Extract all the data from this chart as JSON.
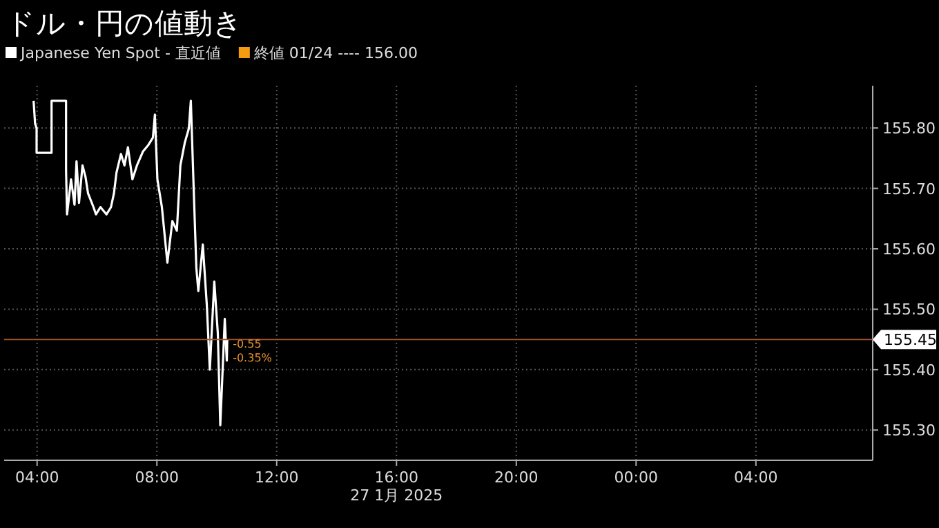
{
  "chart_data": {
    "type": "line",
    "title": "ドル・円の値動き",
    "xlabel": "27 1月 2025",
    "annotations": [
      "終値 01/24 ---- 156.00",
      "-0.55",
      "-0.35%"
    ],
    "series": [
      {
        "name": "Japanese Yen Spot - 直近値",
        "color": "#ffffff",
        "x": [
          "2025-01-27T03:53",
          "2025-01-27T03:56",
          "2025-01-27T03:59",
          "2025-01-27T03:59",
          "2025-01-27T04:29",
          "2025-01-27T04:29",
          "2025-01-27T04:58",
          "2025-01-27T04:58",
          "2025-01-27T05:00",
          "2025-01-27T05:08",
          "2025-01-27T05:15",
          "2025-01-27T05:19",
          "2025-01-27T05:24",
          "2025-01-27T05:31",
          "2025-01-27T05:37",
          "2025-01-27T05:42",
          "2025-01-27T05:53",
          "2025-01-27T05:58",
          "2025-01-27T06:07",
          "2025-01-27T06:19",
          "2025-01-27T06:28",
          "2025-01-27T06:34",
          "2025-01-27T06:39",
          "2025-01-27T06:48",
          "2025-01-27T06:55",
          "2025-01-27T07:02",
          "2025-01-27T07:11",
          "2025-01-27T07:20",
          "2025-01-27T07:32",
          "2025-01-27T07:43",
          "2025-01-27T07:52",
          "2025-01-27T07:56",
          "2025-01-27T08:01",
          "2025-01-27T08:10",
          "2025-01-27T08:21",
          "2025-01-27T08:31",
          "2025-01-27T08:40",
          "2025-01-27T08:47",
          "2025-01-27T08:56",
          "2025-01-27T09:04",
          "2025-01-27T09:08",
          "2025-01-27T09:14",
          "2025-01-27T09:19",
          "2025-01-27T09:23",
          "2025-01-27T09:32",
          "2025-01-27T09:40",
          "2025-01-27T09:46",
          "2025-01-27T09:55",
          "2025-01-27T10:02",
          "2025-01-27T10:07",
          "2025-01-27T10:16",
          "2025-01-27T10:20",
          "2025-01-27T10:21"
        ],
        "values": [
          155.845,
          155.807,
          155.8,
          155.759,
          155.759,
          155.845,
          155.845,
          155.73,
          155.657,
          155.715,
          155.673,
          155.745,
          155.676,
          155.738,
          155.719,
          155.692,
          155.669,
          155.657,
          155.669,
          155.657,
          155.669,
          155.692,
          155.726,
          155.757,
          155.738,
          155.768,
          155.715,
          155.738,
          155.761,
          155.772,
          155.784,
          155.822,
          155.715,
          155.669,
          155.577,
          155.646,
          155.63,
          155.738,
          155.776,
          155.799,
          155.845,
          155.692,
          155.569,
          155.53,
          155.607,
          155.507,
          155.4,
          155.546,
          155.461,
          155.308,
          155.484,
          155.415,
          155.45
        ]
      }
    ],
    "ref_lines": [
      {
        "axis": "y",
        "value": 155.45,
        "label": "155.45",
        "color": "#a0522d"
      }
    ],
    "xlim": [
      "2025-01-27T02:54",
      "2025-01-28T07:54"
    ],
    "ylim": [
      155.25,
      155.87
    ],
    "xticks": [
      {
        "value": "2025-01-27T04:00",
        "label": "04:00"
      },
      {
        "value": "2025-01-27T08:00",
        "label": "08:00"
      },
      {
        "value": "2025-01-27T12:00",
        "label": "12:00"
      },
      {
        "value": "2025-01-27T16:00",
        "label": "16:00"
      },
      {
        "value": "2025-01-27T20:00",
        "label": "20:00"
      },
      {
        "value": "2025-01-28T00:00",
        "label": "00:00"
      },
      {
        "value": "2025-01-28T04:00",
        "label": "04:00"
      }
    ],
    "yticks": [
      {
        "value": 155.3,
        "label": "155.30"
      },
      {
        "value": 155.4,
        "label": "155.40"
      },
      {
        "value": 155.5,
        "label": "155.50"
      },
      {
        "value": 155.6,
        "label": "155.60"
      },
      {
        "value": 155.7,
        "label": "155.70"
      },
      {
        "value": 155.8,
        "label": "155.80"
      }
    ],
    "grid": true,
    "legend": "top left",
    "line_style": "solid",
    "marker": "none"
  }
}
